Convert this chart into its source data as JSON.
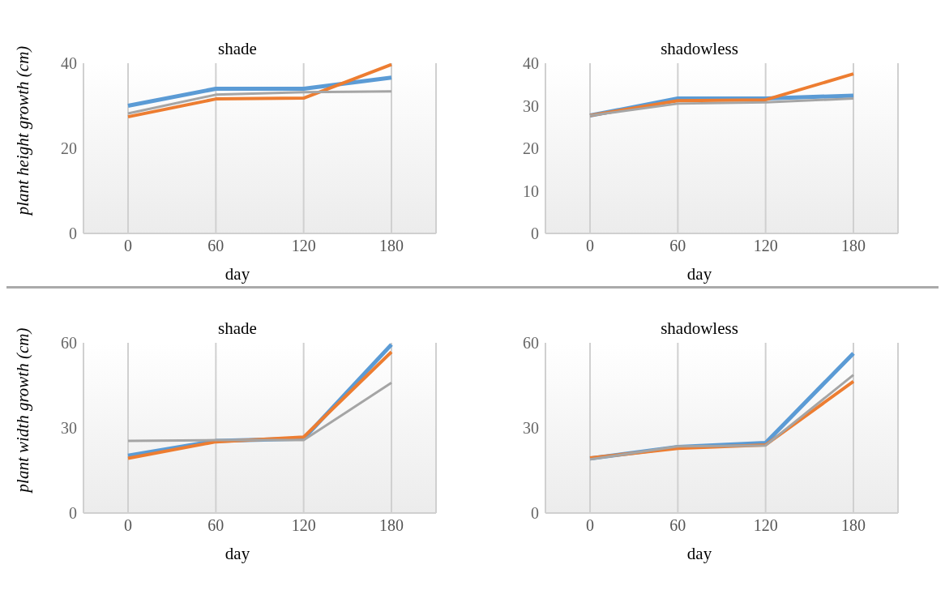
{
  "chart_data": [
    {
      "type": "line",
      "title": "shade",
      "xlabel": "day",
      "ylabel": "plant height growth (cm)",
      "categories": [
        "0",
        "60",
        "120",
        "180"
      ],
      "ylim": [
        0,
        40
      ],
      "yticks": [
        0,
        20,
        40
      ],
      "grid": "x",
      "legend": false,
      "marker": "none",
      "series": [
        {
          "color": "#5b9bd5",
          "values": [
            30,
            34,
            34,
            36.6
          ]
        },
        {
          "color": "#ed7d31",
          "values": [
            27.4,
            31.6,
            31.8,
            39.7
          ]
        },
        {
          "color": "#a5a5a5",
          "values": [
            28.2,
            32.6,
            33.2,
            33.4
          ]
        }
      ]
    },
    {
      "type": "line",
      "title": "shadowless",
      "xlabel": "day",
      "categories": [
        "0",
        "60",
        "120",
        "180"
      ],
      "ylim": [
        0,
        40
      ],
      "yticks": [
        0,
        10,
        20,
        30,
        40
      ],
      "grid": "x",
      "legend": false,
      "marker": "none",
      "series": [
        {
          "color": "#5b9bd5",
          "values": [
            27.7,
            31.7,
            31.7,
            32.4
          ]
        },
        {
          "color": "#ed7d31",
          "values": [
            27.7,
            31.2,
            31.4,
            37.5
          ]
        },
        {
          "color": "#a5a5a5",
          "values": [
            27.7,
            30.5,
            30.8,
            31.7
          ]
        }
      ]
    },
    {
      "type": "line",
      "title": "shade",
      "xlabel": "day",
      "ylabel": "plant width growth (cm)",
      "categories": [
        "0",
        "60",
        "120",
        "180"
      ],
      "ylim": [
        0,
        60
      ],
      "yticks": [
        0,
        30,
        60
      ],
      "grid": "x",
      "legend": false,
      "marker": "none",
      "series": [
        {
          "color": "#5b9bd5",
          "values": [
            20.2,
            25.4,
            26.2,
            59.4
          ]
        },
        {
          "color": "#ed7d31",
          "values": [
            19.3,
            25.1,
            26.8,
            56.8
          ]
        },
        {
          "color": "#a5a5a5",
          "values": [
            25.4,
            25.7,
            25.7,
            45.9
          ]
        }
      ]
    },
    {
      "type": "line",
      "title": "shadowless",
      "xlabel": "day",
      "categories": [
        "0",
        "60",
        "120",
        "180"
      ],
      "ylim": [
        0,
        60
      ],
      "yticks": [
        0,
        30,
        60
      ],
      "grid": "x",
      "legend": false,
      "marker": "none",
      "series": [
        {
          "color": "#5b9bd5",
          "values": [
            19.2,
            23.3,
            24.7,
            56.3
          ]
        },
        {
          "color": "#ed7d31",
          "values": [
            19.4,
            22.8,
            24,
            46.4
          ]
        },
        {
          "color": "#a5a5a5",
          "values": [
            18.9,
            23.5,
            23.8,
            48.7
          ]
        }
      ]
    }
  ]
}
